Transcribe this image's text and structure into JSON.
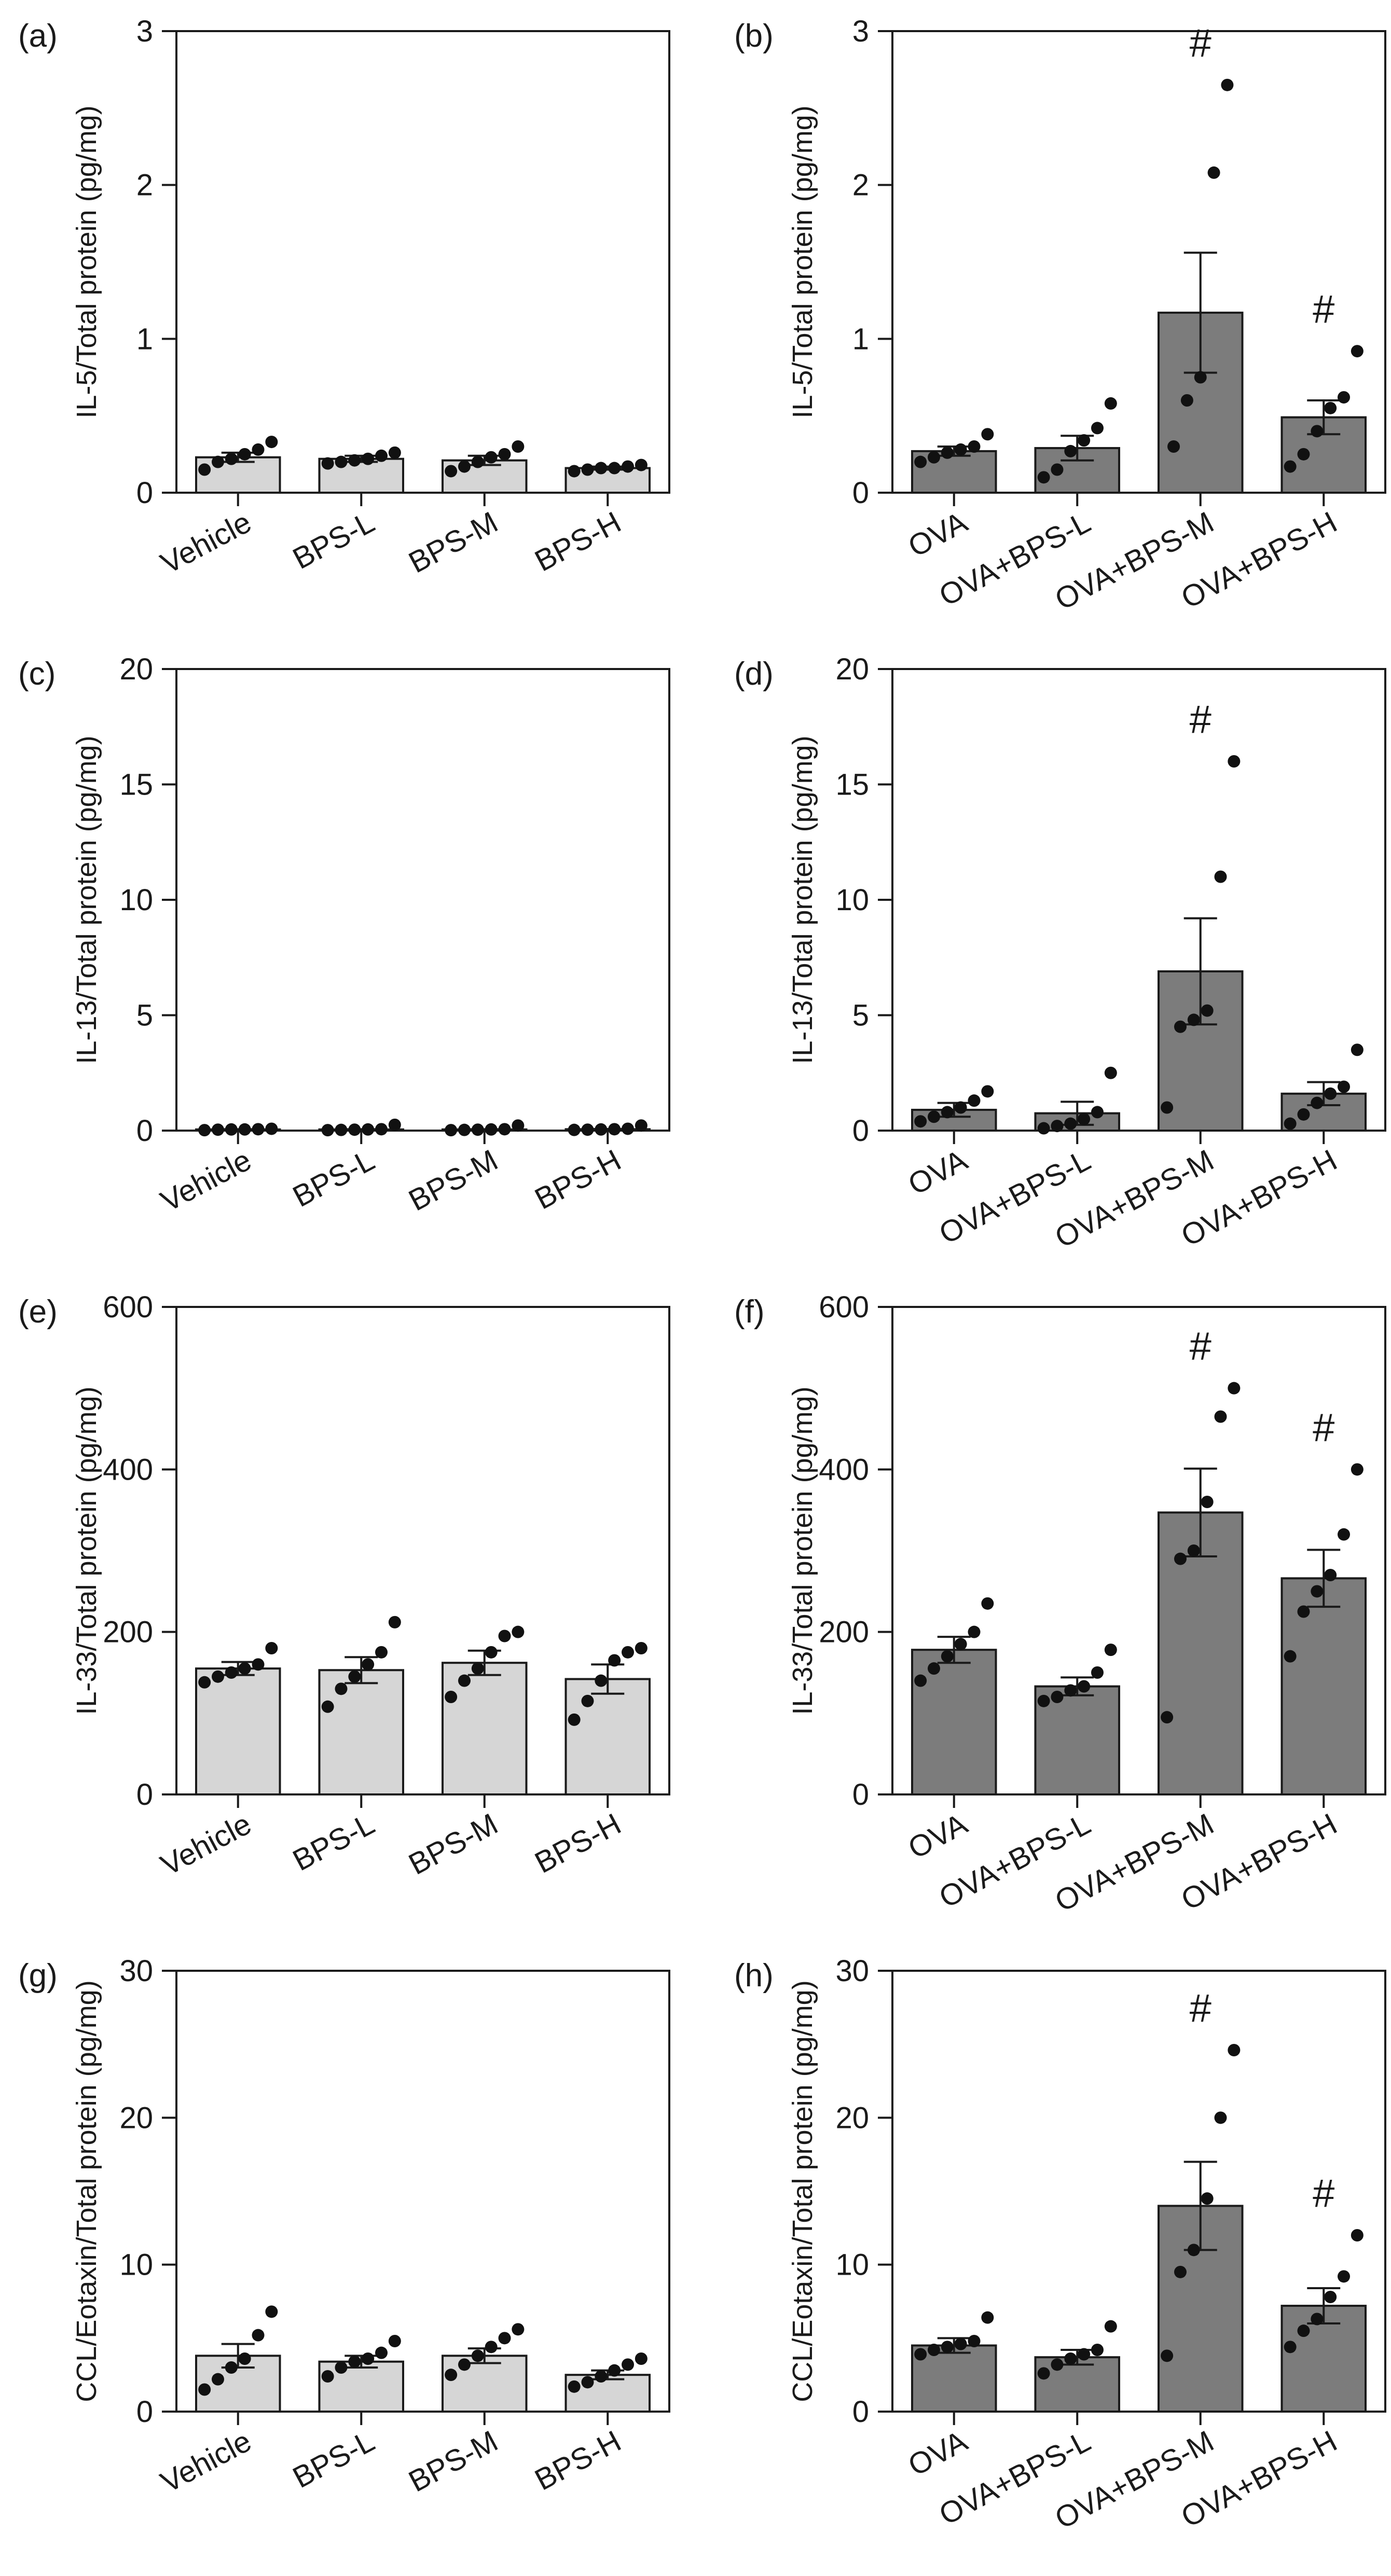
{
  "figure": "multi-panel bar charts with individual data points",
  "colors": {
    "control_bar": "#d6d6d6",
    "ova_bar": "#7c7c7c",
    "edge": "#1a1a1a",
    "point": "#111111"
  },
  "chart_data": [
    {
      "panel": "(a)",
      "type": "bar",
      "ylabel": "IL-5/Total protein (pg/mg)",
      "ylim": [
        0,
        3
      ],
      "yticks": [
        0,
        1,
        2,
        3
      ],
      "color": "#d6d6d6",
      "categories": [
        "Vehicle",
        "BPS-L",
        "BPS-M",
        "BPS-H"
      ],
      "values": [
        0.23,
        0.22,
        0.21,
        0.16
      ],
      "errors": [
        0.03,
        0.02,
        0.03,
        0.01
      ],
      "points": [
        [
          0.15,
          0.2,
          0.22,
          0.25,
          0.28,
          0.33
        ],
        [
          0.19,
          0.2,
          0.21,
          0.22,
          0.24,
          0.26
        ],
        [
          0.14,
          0.17,
          0.2,
          0.23,
          0.25,
          0.3
        ],
        [
          0.14,
          0.15,
          0.16,
          0.16,
          0.17,
          0.18
        ]
      ],
      "markers": [
        "",
        "",
        "",
        ""
      ]
    },
    {
      "panel": "(b)",
      "type": "bar",
      "ylabel": "IL-5/Total protein (pg/mg)",
      "ylim": [
        0,
        3
      ],
      "yticks": [
        0,
        1,
        2,
        3
      ],
      "color": "#7c7c7c",
      "categories": [
        "OVA",
        "OVA+BPS-L",
        "OVA+BPS-M",
        "OVA+BPS-H"
      ],
      "values": [
        0.27,
        0.29,
        1.17,
        0.49
      ],
      "errors": [
        0.03,
        0.08,
        0.39,
        0.11
      ],
      "points": [
        [
          0.2,
          0.23,
          0.26,
          0.28,
          0.3,
          0.38
        ],
        [
          0.1,
          0.15,
          0.27,
          0.34,
          0.42,
          0.58
        ],
        [
          0.3,
          0.6,
          0.75,
          2.08,
          2.65
        ],
        [
          0.17,
          0.25,
          0.4,
          0.55,
          0.62,
          0.92
        ]
      ],
      "markers": [
        "",
        "",
        "#",
        "#"
      ]
    },
    {
      "panel": "(c)",
      "type": "bar",
      "ylabel": "IL-13/Total protein (pg/mg)",
      "ylim": [
        0,
        20
      ],
      "yticks": [
        0,
        5,
        10,
        15,
        20
      ],
      "color": "#d6d6d6",
      "categories": [
        "Vehicle",
        "BPS-L",
        "BPS-M",
        "BPS-H"
      ],
      "values": [
        0.05,
        0.05,
        0.05,
        0.06
      ],
      "errors": [
        0.01,
        0.01,
        0.01,
        0.01
      ],
      "points": [
        [
          0.02,
          0.04,
          0.05,
          0.05,
          0.06,
          0.08
        ],
        [
          0.02,
          0.03,
          0.04,
          0.05,
          0.06,
          0.25
        ],
        [
          0.02,
          0.03,
          0.04,
          0.05,
          0.06,
          0.22
        ],
        [
          0.03,
          0.04,
          0.05,
          0.06,
          0.08,
          0.22
        ]
      ],
      "markers": [
        "",
        "",
        "",
        ""
      ]
    },
    {
      "panel": "(d)",
      "type": "bar",
      "ylabel": "IL-13/Total protein (pg/mg)",
      "ylim": [
        0,
        20
      ],
      "yticks": [
        0,
        5,
        10,
        15,
        20
      ],
      "color": "#7c7c7c",
      "categories": [
        "OVA",
        "OVA+BPS-L",
        "OVA+BPS-M",
        "OVA+BPS-H"
      ],
      "values": [
        0.9,
        0.75,
        6.9,
        1.6
      ],
      "errors": [
        0.3,
        0.5,
        2.3,
        0.5
      ],
      "points": [
        [
          0.4,
          0.6,
          0.8,
          1.0,
          1.3,
          1.7
        ],
        [
          0.1,
          0.2,
          0.3,
          0.5,
          0.8,
          2.5
        ],
        [
          1.0,
          4.5,
          4.8,
          5.2,
          11.0,
          16.0
        ],
        [
          0.3,
          0.7,
          1.2,
          1.6,
          1.9,
          3.5
        ]
      ],
      "markers": [
        "",
        "",
        "#",
        ""
      ]
    },
    {
      "panel": "(e)",
      "type": "bar",
      "ylabel": "IL-33/Total protein (pg/mg)",
      "ylim": [
        0,
        600
      ],
      "yticks": [
        0,
        200,
        400,
        600
      ],
      "color": "#d6d6d6",
      "categories": [
        "Vehicle",
        "BPS-L",
        "BPS-M",
        "BPS-H"
      ],
      "values": [
        155,
        153,
        162,
        142
      ],
      "errors": [
        8,
        16,
        15,
        18
      ],
      "points": [
        [
          138,
          145,
          150,
          155,
          160,
          180
        ],
        [
          108,
          130,
          145,
          160,
          175,
          212
        ],
        [
          120,
          140,
          155,
          175,
          195,
          200
        ],
        [
          92,
          115,
          140,
          165,
          175,
          180
        ]
      ],
      "markers": [
        "",
        "",
        "",
        ""
      ]
    },
    {
      "panel": "(f)",
      "type": "bar",
      "ylabel": "IL-33/Total protein (pg/mg)",
      "ylim": [
        0,
        600
      ],
      "yticks": [
        0,
        200,
        400,
        600
      ],
      "color": "#7c7c7c",
      "categories": [
        "OVA",
        "OVA+BPS-L",
        "OVA+BPS-M",
        "OVA+BPS-H"
      ],
      "values": [
        178,
        133,
        347,
        266
      ],
      "errors": [
        16,
        11,
        54,
        35
      ],
      "points": [
        [
          140,
          155,
          170,
          185,
          200,
          235
        ],
        [
          115,
          120,
          128,
          133,
          150,
          178
        ],
        [
          95,
          290,
          300,
          360,
          465,
          500
        ],
        [
          170,
          225,
          250,
          270,
          320,
          400
        ]
      ],
      "markers": [
        "",
        "",
        "#",
        "#"
      ]
    },
    {
      "panel": "(g)",
      "type": "bar",
      "ylabel": "CCL/Eotaxin/Total protein (pg/mg)",
      "ylim": [
        0,
        30
      ],
      "yticks": [
        0,
        10,
        20,
        30
      ],
      "color": "#d6d6d6",
      "categories": [
        "Vehicle",
        "BPS-L",
        "BPS-M",
        "BPS-H"
      ],
      "values": [
        3.8,
        3.4,
        3.8,
        2.5
      ],
      "errors": [
        0.8,
        0.4,
        0.5,
        0.3
      ],
      "points": [
        [
          1.5,
          2.2,
          3.0,
          3.6,
          5.2,
          6.8
        ],
        [
          2.4,
          3.0,
          3.4,
          3.6,
          4.0,
          4.8
        ],
        [
          2.5,
          3.2,
          3.8,
          4.4,
          5.0,
          5.6
        ],
        [
          1.7,
          2.0,
          2.4,
          2.8,
          3.2,
          3.6
        ]
      ],
      "markers": [
        "",
        "",
        "",
        ""
      ]
    },
    {
      "panel": "(h)",
      "type": "bar",
      "ylabel": "CCL/Eotaxin/Total protein (pg/mg)",
      "ylim": [
        0,
        30
      ],
      "yticks": [
        0,
        10,
        20,
        30
      ],
      "color": "#7c7c7c",
      "categories": [
        "OVA",
        "OVA+BPS-L",
        "OVA+BPS-M",
        "OVA+BPS-H"
      ],
      "values": [
        4.5,
        3.7,
        14.0,
        7.2
      ],
      "errors": [
        0.5,
        0.5,
        3.0,
        1.2
      ],
      "points": [
        [
          3.9,
          4.2,
          4.4,
          4.6,
          4.8,
          6.4
        ],
        [
          2.6,
          3.2,
          3.6,
          3.9,
          4.2,
          5.8
        ],
        [
          3.8,
          9.5,
          11.0,
          14.5,
          20.0,
          24.6
        ],
        [
          4.4,
          5.5,
          6.3,
          7.8,
          9.2,
          12.0
        ]
      ],
      "markers": [
        "",
        "",
        "#",
        "#"
      ]
    }
  ]
}
